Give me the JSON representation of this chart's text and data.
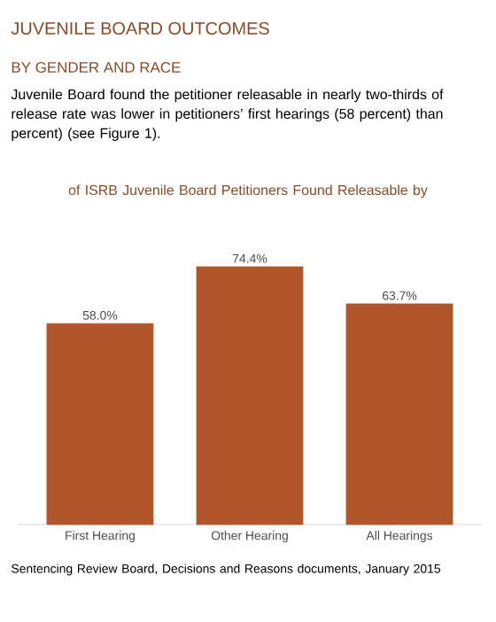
{
  "chart_data": {
    "type": "bar",
    "title": "of ISRB Juvenile Board Petitioners Found Releasable by",
    "categories": [
      "First Hearing",
      "Other Hearing",
      "All Hearings"
    ],
    "values": [
      58.0,
      74.4,
      63.7
    ],
    "value_labels": [
      "58.0%",
      "74.4%",
      "63.7%"
    ],
    "color": "#b0562a",
    "tick_labels": "x",
    "annotations": [
      "JUVENILE BOARD OUTCOMES",
      "BY GENDER AND RACE",
      "Juvenile Board found the petitioner releasable in nearly two-thirds of release rate was lower in petitioners’ first hearings (58 percent) than percent) (see Figure 1).",
      "Sentencing Review Board, Decisions and Reasons documents, January 2015"
    ]
  }
}
